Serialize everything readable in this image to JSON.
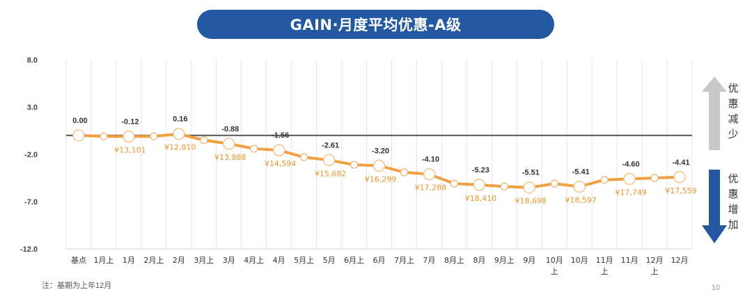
{
  "title": "GAIN·月度平均优惠-A级",
  "note": "注：基期为上年12月",
  "side": {
    "up": "优惠减少",
    "down": "优惠增加"
  },
  "page_number": "10",
  "colors": {
    "banner": "#2458a0",
    "line": "#f0a040",
    "label_orange": "#e8962e",
    "baseline": "#555555",
    "arrow_gray": "#c8c8c8",
    "arrow_blue": "#2458a0"
  },
  "chart_data": {
    "type": "line",
    "title": "GAIN·月度平均优惠-A级",
    "xlabel": "",
    "ylabel": "",
    "ylim": [
      -12,
      8
    ],
    "yticks": [
      "8.0",
      "3.0",
      "-2.0",
      "-7.0",
      "-12.0"
    ],
    "ytick_values": [
      8,
      3,
      -2,
      -7,
      -12
    ],
    "grid": "vertical",
    "baseline": 0,
    "categories": [
      "基点",
      "1月上",
      "1月",
      "2月上",
      "2月",
      "3月上",
      "3月",
      "4月上",
      "4月",
      "5月上",
      "5月",
      "6月上",
      "6月",
      "7月上",
      "7月",
      "8月上",
      "8月",
      "9月上",
      "9月",
      "10月上",
      "10月",
      "11月上",
      "11月",
      "12月上",
      "12月"
    ],
    "category_display": [
      [
        "基点"
      ],
      [
        "1月上"
      ],
      [
        "1月"
      ],
      [
        "2月上"
      ],
      [
        "2月"
      ],
      [
        "3月上"
      ],
      [
        "3月"
      ],
      [
        "4月上"
      ],
      [
        "4月"
      ],
      [
        "5月上"
      ],
      [
        "5月"
      ],
      [
        "6月上"
      ],
      [
        "6月"
      ],
      [
        "7月上"
      ],
      [
        "7月"
      ],
      [
        "8月上"
      ],
      [
        "8月"
      ],
      [
        "9月上"
      ],
      [
        "9月"
      ],
      [
        "10月",
        "上"
      ],
      [
        "10月"
      ],
      [
        "11月",
        "上"
      ],
      [
        "11月"
      ],
      [
        "12月",
        "上"
      ],
      [
        "12月"
      ]
    ],
    "values": [
      0.0,
      -0.1,
      -0.12,
      -0.1,
      0.16,
      -0.5,
      -0.88,
      -1.4,
      -1.56,
      -2.3,
      -2.61,
      -3.1,
      -3.2,
      -3.9,
      -4.1,
      -5.1,
      -5.23,
      -5.4,
      -5.51,
      -5.1,
      -5.41,
      -4.7,
      -4.6,
      -4.5,
      -4.41
    ],
    "major": [
      true,
      false,
      true,
      false,
      true,
      false,
      true,
      false,
      true,
      false,
      true,
      false,
      true,
      false,
      true,
      false,
      true,
      false,
      true,
      false,
      true,
      false,
      true,
      false,
      true
    ],
    "value_labels": [
      "0.00",
      "",
      "-0.12",
      "",
      "0.16",
      "",
      "-0.88",
      "",
      "-1.56",
      "",
      "-2.61",
      "",
      "-3.20",
      "",
      "-4.10",
      "",
      "-5.23",
      "",
      "-5.51",
      "",
      "-5.41",
      "",
      "-4.60",
      "",
      "-4.41"
    ],
    "price_labels": [
      "",
      "",
      "¥13,101",
      "",
      "¥12,810",
      "",
      "¥13,888",
      "",
      "¥14,594",
      "",
      "¥15,682",
      "",
      "¥16,299",
      "",
      "¥17,288",
      "",
      "¥18,410",
      "",
      "¥18,698",
      "",
      "¥18,597",
      "",
      "¥17,749",
      "",
      "¥17,559"
    ]
  }
}
